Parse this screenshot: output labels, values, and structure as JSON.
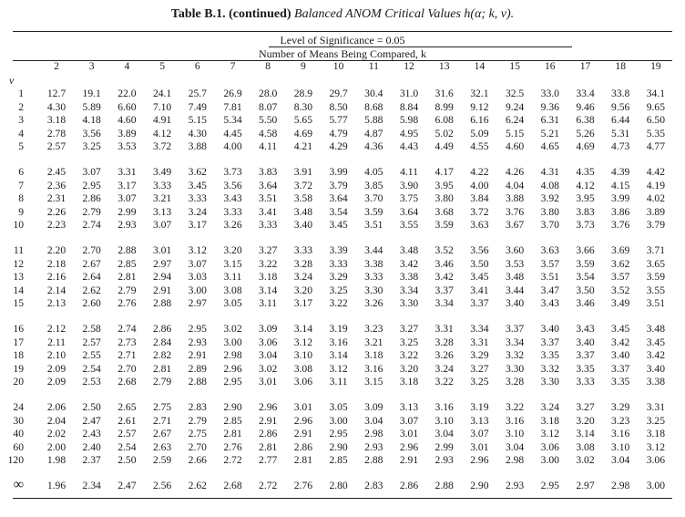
{
  "caption": {
    "label": "Table B.1. (continued)",
    "title": "Balanced ANOM Critical Values h(α; k, ν)."
  },
  "header": {
    "significance": "Level of Significance = 0.05",
    "means": "Number of Means Being Compared, k",
    "nu_symbol": "ν"
  },
  "columns": [
    "2",
    "3",
    "4",
    "5",
    "6",
    "7",
    "8",
    "9",
    "10",
    "11",
    "12",
    "13",
    "14",
    "15",
    "16",
    "17",
    "18",
    "19"
  ],
  "groups": [
    {
      "rows": [
        {
          "nu": "1",
          "values": [
            "12.7",
            "19.1",
            "22.0",
            "24.1",
            "25.7",
            "26.9",
            "28.0",
            "28.9",
            "29.7",
            "30.4",
            "31.0",
            "31.6",
            "32.1",
            "32.5",
            "33.0",
            "33.4",
            "33.8",
            "34.1"
          ]
        },
        {
          "nu": "2",
          "values": [
            "4.30",
            "5.89",
            "6.60",
            "7.10",
            "7.49",
            "7.81",
            "8.07",
            "8.30",
            "8.50",
            "8.68",
            "8.84",
            "8.99",
            "9.12",
            "9.24",
            "9.36",
            "9.46",
            "9.56",
            "9.65"
          ]
        },
        {
          "nu": "3",
          "values": [
            "3.18",
            "4.18",
            "4.60",
            "4.91",
            "5.15",
            "5.34",
            "5.50",
            "5.65",
            "5.77",
            "5.88",
            "5.98",
            "6.08",
            "6.16",
            "6.24",
            "6.31",
            "6.38",
            "6.44",
            "6.50"
          ]
        },
        {
          "nu": "4",
          "values": [
            "2.78",
            "3.56",
            "3.89",
            "4.12",
            "4.30",
            "4.45",
            "4.58",
            "4.69",
            "4.79",
            "4.87",
            "4.95",
            "5.02",
            "5.09",
            "5.15",
            "5.21",
            "5.26",
            "5.31",
            "5.35"
          ]
        },
        {
          "nu": "5",
          "values": [
            "2.57",
            "3.25",
            "3.53",
            "3.72",
            "3.88",
            "4.00",
            "4.11",
            "4.21",
            "4.29",
            "4.36",
            "4.43",
            "4.49",
            "4.55",
            "4.60",
            "4.65",
            "4.69",
            "4.73",
            "4.77"
          ]
        }
      ]
    },
    {
      "rows": [
        {
          "nu": "6",
          "values": [
            "2.45",
            "3.07",
            "3.31",
            "3.49",
            "3.62",
            "3.73",
            "3.83",
            "3.91",
            "3.99",
            "4.05",
            "4.11",
            "4.17",
            "4.22",
            "4.26",
            "4.31",
            "4.35",
            "4.39",
            "4.42"
          ]
        },
        {
          "nu": "7",
          "values": [
            "2.36",
            "2.95",
            "3.17",
            "3.33",
            "3.45",
            "3.56",
            "3.64",
            "3.72",
            "3.79",
            "3.85",
            "3.90",
            "3.95",
            "4.00",
            "4.04",
            "4.08",
            "4.12",
            "4.15",
            "4.19"
          ]
        },
        {
          "nu": "8",
          "values": [
            "2.31",
            "2.86",
            "3.07",
            "3.21",
            "3.33",
            "3.43",
            "3.51",
            "3.58",
            "3.64",
            "3.70",
            "3.75",
            "3.80",
            "3.84",
            "3.88",
            "3.92",
            "3.95",
            "3.99",
            "4.02"
          ]
        },
        {
          "nu": "9",
          "values": [
            "2.26",
            "2.79",
            "2.99",
            "3.13",
            "3.24",
            "3.33",
            "3.41",
            "3.48",
            "3.54",
            "3.59",
            "3.64",
            "3.68",
            "3.72",
            "3.76",
            "3.80",
            "3.83",
            "3.86",
            "3.89"
          ]
        },
        {
          "nu": "10",
          "values": [
            "2.23",
            "2.74",
            "2.93",
            "3.07",
            "3.17",
            "3.26",
            "3.33",
            "3.40",
            "3.45",
            "3.51",
            "3.55",
            "3.59",
            "3.63",
            "3.67",
            "3.70",
            "3.73",
            "3.76",
            "3.79"
          ]
        }
      ]
    },
    {
      "rows": [
        {
          "nu": "11",
          "values": [
            "2.20",
            "2.70",
            "2.88",
            "3.01",
            "3.12",
            "3.20",
            "3.27",
            "3.33",
            "3.39",
            "3.44",
            "3.48",
            "3.52",
            "3.56",
            "3.60",
            "3.63",
            "3.66",
            "3.69",
            "3.71"
          ]
        },
        {
          "nu": "12",
          "values": [
            "2.18",
            "2.67",
            "2.85",
            "2.97",
            "3.07",
            "3.15",
            "3.22",
            "3.28",
            "3.33",
            "3.38",
            "3.42",
            "3.46",
            "3.50",
            "3.53",
            "3.57",
            "3.59",
            "3.62",
            "3.65"
          ]
        },
        {
          "nu": "13",
          "values": [
            "2.16",
            "2.64",
            "2.81",
            "2.94",
            "3.03",
            "3.11",
            "3.18",
            "3.24",
            "3.29",
            "3.33",
            "3.38",
            "3.42",
            "3.45",
            "3.48",
            "3.51",
            "3.54",
            "3.57",
            "3.59"
          ]
        },
        {
          "nu": "14",
          "values": [
            "2.14",
            "2.62",
            "2.79",
            "2.91",
            "3.00",
            "3.08",
            "3.14",
            "3.20",
            "3.25",
            "3.30",
            "3.34",
            "3.37",
            "3.41",
            "3.44",
            "3.47",
            "3.50",
            "3.52",
            "3.55"
          ]
        },
        {
          "nu": "15",
          "values": [
            "2.13",
            "2.60",
            "2.76",
            "2.88",
            "2.97",
            "3.05",
            "3.11",
            "3.17",
            "3.22",
            "3.26",
            "3.30",
            "3.34",
            "3.37",
            "3.40",
            "3.43",
            "3.46",
            "3.49",
            "3.51"
          ]
        }
      ]
    },
    {
      "rows": [
        {
          "nu": "16",
          "values": [
            "2.12",
            "2.58",
            "2.74",
            "2.86",
            "2.95",
            "3.02",
            "3.09",
            "3.14",
            "3.19",
            "3.23",
            "3.27",
            "3.31",
            "3.34",
            "3.37",
            "3.40",
            "3.43",
            "3.45",
            "3.48"
          ]
        },
        {
          "nu": "17",
          "values": [
            "2.11",
            "2.57",
            "2.73",
            "2.84",
            "2.93",
            "3.00",
            "3.06",
            "3.12",
            "3.16",
            "3.21",
            "3.25",
            "3.28",
            "3.31",
            "3.34",
            "3.37",
            "3.40",
            "3.42",
            "3.45"
          ]
        },
        {
          "nu": "18",
          "values": [
            "2.10",
            "2.55",
            "2.71",
            "2.82",
            "2.91",
            "2.98",
            "3.04",
            "3.10",
            "3.14",
            "3.18",
            "3.22",
            "3.26",
            "3.29",
            "3.32",
            "3.35",
            "3.37",
            "3.40",
            "3.42"
          ]
        },
        {
          "nu": "19",
          "values": [
            "2.09",
            "2.54",
            "2.70",
            "2.81",
            "2.89",
            "2.96",
            "3.02",
            "3.08",
            "3.12",
            "3.16",
            "3.20",
            "3.24",
            "3.27",
            "3.30",
            "3.32",
            "3.35",
            "3.37",
            "3.40"
          ]
        },
        {
          "nu": "20",
          "values": [
            "2.09",
            "2.53",
            "2.68",
            "2.79",
            "2.88",
            "2.95",
            "3.01",
            "3.06",
            "3.11",
            "3.15",
            "3.18",
            "3.22",
            "3.25",
            "3.28",
            "3.30",
            "3.33",
            "3.35",
            "3.38"
          ]
        }
      ]
    },
    {
      "rows": [
        {
          "nu": "24",
          "values": [
            "2.06",
            "2.50",
            "2.65",
            "2.75",
            "2.83",
            "2.90",
            "2.96",
            "3.01",
            "3.05",
            "3.09",
            "3.13",
            "3.16",
            "3.19",
            "3.22",
            "3.24",
            "3.27",
            "3.29",
            "3.31"
          ]
        },
        {
          "nu": "30",
          "values": [
            "2.04",
            "2.47",
            "2.61",
            "2.71",
            "2.79",
            "2.85",
            "2.91",
            "2.96",
            "3.00",
            "3.04",
            "3.07",
            "3.10",
            "3.13",
            "3.16",
            "3.18",
            "3.20",
            "3.23",
            "3.25"
          ]
        },
        {
          "nu": "40",
          "values": [
            "2.02",
            "2.43",
            "2.57",
            "2.67",
            "2.75",
            "2.81",
            "2.86",
            "2.91",
            "2.95",
            "2.98",
            "3.01",
            "3.04",
            "3.07",
            "3.10",
            "3.12",
            "3.14",
            "3.16",
            "3.18"
          ]
        },
        {
          "nu": "60",
          "values": [
            "2.00",
            "2.40",
            "2.54",
            "2.63",
            "2.70",
            "2.76",
            "2.81",
            "2.86",
            "2.90",
            "2.93",
            "2.96",
            "2.99",
            "3.01",
            "3.04",
            "3.06",
            "3.08",
            "3.10",
            "3.12"
          ]
        },
        {
          "nu": "120",
          "values": [
            "1.98",
            "2.37",
            "2.50",
            "2.59",
            "2.66",
            "2.72",
            "2.77",
            "2.81",
            "2.85",
            "2.88",
            "2.91",
            "2.93",
            "2.96",
            "2.98",
            "3.00",
            "3.02",
            "3.04",
            "3.06"
          ]
        }
      ]
    },
    {
      "rows": [
        {
          "nu": "∞",
          "values": [
            "1.96",
            "2.34",
            "2.47",
            "2.56",
            "2.62",
            "2.68",
            "2.72",
            "2.76",
            "2.80",
            "2.83",
            "2.86",
            "2.88",
            "2.90",
            "2.93",
            "2.95",
            "2.97",
            "2.98",
            "3.00"
          ]
        }
      ]
    }
  ]
}
